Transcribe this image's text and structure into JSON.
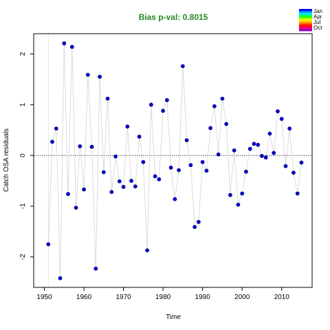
{
  "chart_data": {
    "type": "scatter",
    "title": "Bias p-val: 0.8015",
    "title_color": "#228B22",
    "xlabel": "Time",
    "ylabel": "Catch OSA residuals",
    "xlim": [
      1947.3,
      2017.7
    ],
    "ylim": [
      -2.6,
      2.4
    ],
    "xticks": [
      1950,
      1960,
      1970,
      1980,
      1990,
      2000,
      2010
    ],
    "yticks": [
      -2,
      -1,
      0,
      1,
      2
    ],
    "xtick_labels": [
      "1950",
      "1960",
      "1970",
      "1980",
      "1990",
      "2000",
      "2010"
    ],
    "ytick_labels": [
      "-2",
      "-1",
      "0",
      "1",
      "2"
    ],
    "reference_hline": 0,
    "reference_vline": 1951,
    "point_color": "#0000CD",
    "line_color": "#D3D3D3",
    "legend": {
      "position": "top-right",
      "labels": [
        "Jan",
        "Apr",
        "Jul",
        "Oct"
      ],
      "colors": [
        "#0000FF",
        "#0080FF",
        "#00E5FF",
        "#00FF80",
        "#33FF00",
        "#CCFF00",
        "#FFE500",
        "#FF9900",
        "#FF3300",
        "#FF0033",
        "#E6007A",
        "#9900CC"
      ]
    },
    "series": [
      {
        "x": [
          1951,
          1952,
          1953,
          1954,
          1955,
          1956,
          1957,
          1958,
          1959,
          1960,
          1961,
          1962,
          1963,
          1964,
          1965,
          1966,
          1967,
          1968,
          1969,
          1970,
          1971,
          1972,
          1973,
          1974,
          1975,
          1976,
          1977,
          1978,
          1979,
          1980,
          1981,
          1982,
          1983,
          1984,
          1985,
          1986,
          1987,
          1988,
          1989,
          1990,
          1991,
          1992,
          1993,
          1994,
          1995,
          1996,
          1997,
          1998,
          1999,
          2000,
          2001,
          2002,
          2003,
          2004,
          2005,
          2006,
          2007,
          2008,
          2009,
          2010,
          2011,
          2012,
          2013,
          2014,
          2015
        ],
        "y": [
          -1.75,
          0.27,
          0.53,
          -2.42,
          2.21,
          -0.76,
          2.14,
          -1.03,
          0.18,
          -0.67,
          1.59,
          0.17,
          -2.23,
          1.55,
          -0.33,
          1.12,
          -0.72,
          -0.02,
          -0.51,
          -0.62,
          0.57,
          -0.5,
          -0.61,
          0.37,
          -0.13,
          -1.87,
          1.0,
          -0.41,
          -0.47,
          0.88,
          1.09,
          -0.24,
          -0.86,
          -0.29,
          1.76,
          0.3,
          -0.19,
          -1.41,
          -1.31,
          -0.13,
          -0.3,
          0.54,
          0.97,
          0.02,
          1.12,
          0.62,
          -0.78,
          0.1,
          -0.97,
          -0.75,
          -0.32,
          0.13,
          0.23,
          0.21,
          -0.01,
          -0.04,
          0.43,
          0.05,
          0.87,
          0.72,
          -0.21,
          0.53,
          -0.34,
          -0.75,
          -0.14
        ]
      }
    ]
  }
}
